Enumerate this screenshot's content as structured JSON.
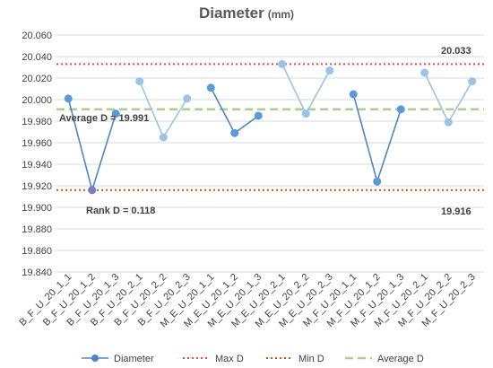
{
  "chart_data": {
    "type": "line",
    "title": "Diameter",
    "title_unit": "(mm)",
    "xlabel": "",
    "ylabel": "",
    "ylim": [
      19.84,
      20.06
    ],
    "ytick_step": 0.02,
    "yticks": [
      "19.840",
      "19.860",
      "19.880",
      "19.900",
      "19.920",
      "19.940",
      "19.960",
      "19.980",
      "20.000",
      "20.020",
      "20.040",
      "20.060"
    ],
    "grid": "horizontal",
    "legend_position": "bottom",
    "categories": [
      "B_F_U_20_1_1",
      "B_F_U_20_1_2",
      "B_F_U_20_1_3",
      "B_F_U_20_2_1",
      "B_F_U_20_2_2",
      "B_F_U_20_2_3",
      "M_E_U_20_1_1",
      "M_E_U_20_1_2",
      "M_E_U_20_1_3",
      "M_E_U_20_2_1",
      "M_E_U_20_2_2",
      "M_E_U_20_2_3",
      "M_F_U_20_1_1",
      "M_F_U_20_1_2",
      "M_F_U_20_1_3",
      "M_F_U_20_2_1",
      "M_F_U_20_2_2",
      "M_F_U_20_2_3"
    ],
    "series": [
      {
        "name": "Diameter",
        "kind": "line",
        "groups": [
          {
            "values": [
              20.001,
              19.916,
              19.987
            ],
            "color": "#4f86c6",
            "marker": "#5b9bd5"
          },
          {
            "values": [
              20.017,
              19.965,
              20.001
            ],
            "color": "#9cc3e5",
            "marker": "#9cc3e5"
          },
          {
            "values": [
              20.011,
              19.969,
              19.985
            ],
            "color": "#4f86c6",
            "marker": "#5b9bd5"
          },
          {
            "values": [
              20.033,
              19.987,
              20.027
            ],
            "color": "#9cc3e5",
            "marker": "#9cc3e5"
          },
          {
            "values": [
              20.005,
              19.924,
              19.991
            ],
            "color": "#4f86c6",
            "marker": "#5b9bd5"
          },
          {
            "values": [
              20.025,
              19.979,
              20.017
            ],
            "color": "#9cc3e5",
            "marker": "#9cc3e5"
          }
        ],
        "highlight_index": 1,
        "highlight_marker": "#7a7fc2"
      },
      {
        "name": "Max D",
        "kind": "hline",
        "value": 20.033,
        "color": "#e64b3c",
        "style": "dotted"
      },
      {
        "name": "Min D",
        "kind": "hline",
        "value": 19.916,
        "color": "#c55a11",
        "style": "dotted"
      },
      {
        "name": "Average D",
        "kind": "hline",
        "value": 19.991,
        "color": "#a9d18e",
        "style": "dashed"
      }
    ],
    "annotations": {
      "average": "Average D = 19.991",
      "rank": "Rank D = 0.118",
      "max": "20.033",
      "min": "19.916"
    },
    "legend": [
      "Diameter",
      "Max D",
      "Min D",
      "Average D"
    ]
  }
}
